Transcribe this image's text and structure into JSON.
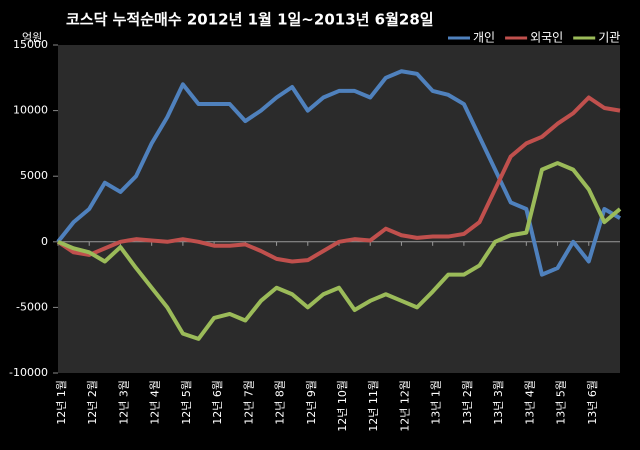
{
  "chart_data": {
    "type": "line",
    "title": "코스닥 누적순매수 2012년 1월 1일~2013년 6월28일",
    "y_label": "억원",
    "x": [
      0,
      0.5,
      1,
      1.5,
      2,
      2.5,
      3,
      3.5,
      4,
      4.5,
      5,
      5.5,
      6,
      6.5,
      7,
      7.5,
      8,
      8.5,
      9,
      9.5,
      10,
      10.5,
      11,
      11.5,
      12,
      12.5,
      13,
      13.5,
      14,
      14.5,
      15,
      15.5,
      16,
      16.5,
      17,
      17.5,
      18
    ],
    "xlim": [
      0,
      18
    ],
    "xticks": [
      {
        "value": 0,
        "label": "12년 1월"
      },
      {
        "value": 1,
        "label": "12년 2월"
      },
      {
        "value": 2,
        "label": "12년 3월"
      },
      {
        "value": 3,
        "label": "12년 4월"
      },
      {
        "value": 4,
        "label": "12년 5월"
      },
      {
        "value": 5,
        "label": "12년 6월"
      },
      {
        "value": 6,
        "label": "12년 7월"
      },
      {
        "value": 7,
        "label": "12년 8월"
      },
      {
        "value": 8,
        "label": "12년 9월"
      },
      {
        "value": 9,
        "label": "12년 10월"
      },
      {
        "value": 10,
        "label": "12년 11월"
      },
      {
        "value": 11,
        "label": "12년 12월"
      },
      {
        "value": 12,
        "label": "13년 1월"
      },
      {
        "value": 13,
        "label": "13년 2월"
      },
      {
        "value": 14,
        "label": "13년 3월"
      },
      {
        "value": 15,
        "label": "13년 4월"
      },
      {
        "value": 16,
        "label": "13년 5월"
      },
      {
        "value": 17,
        "label": "13년 6월"
      }
    ],
    "ylim": [
      -10000,
      15000
    ],
    "yticks": [
      -10000,
      -5000,
      0,
      5000,
      10000,
      15000
    ],
    "legend": "top-right",
    "series": [
      {
        "name": "개인",
        "color": "#4f81bd",
        "values": [
          0,
          1500,
          2500,
          4500,
          3800,
          5000,
          7500,
          9500,
          12000,
          10500,
          10500,
          10500,
          9200,
          10000,
          11000,
          11800,
          10000,
          11000,
          11500,
          11500,
          11000,
          12500,
          13000,
          12800,
          11500,
          11200,
          10500,
          8000,
          5500,
          3000,
          2500,
          -2500,
          -2000,
          0,
          -1500,
          2500,
          1800
        ]
      },
      {
        "name": "외국인",
        "color": "#c0504d",
        "values": [
          0,
          -800,
          -1000,
          -500,
          0,
          200,
          100,
          0,
          200,
          0,
          -300,
          -300,
          -200,
          -700,
          -1300,
          -1500,
          -1400,
          -700,
          0,
          200,
          100,
          1000,
          500,
          300,
          400,
          400,
          600,
          1500,
          4000,
          6500,
          7500,
          8000,
          9000,
          9800,
          11000,
          10200,
          10000
        ]
      },
      {
        "name": "기관",
        "color": "#9bbb59",
        "values": [
          0,
          -500,
          -800,
          -1500,
          -400,
          -2000,
          -3500,
          -5000,
          -7000,
          -7400,
          -5800,
          -5500,
          -6000,
          -4500,
          -3500,
          -4000,
          -5000,
          -4000,
          -3500,
          -5200,
          -4500,
          -4000,
          -4500,
          -5000,
          -3800,
          -2500,
          -2500,
          -1800,
          0,
          500,
          700,
          5500,
          6000,
          5500,
          4000,
          1500,
          2500
        ]
      }
    ]
  }
}
